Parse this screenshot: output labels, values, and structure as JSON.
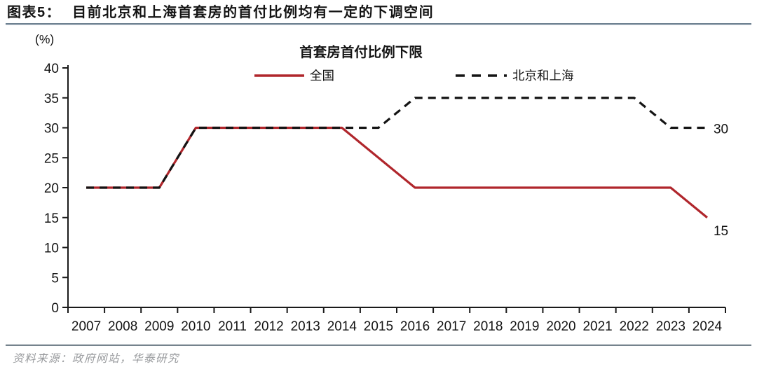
{
  "figure": {
    "label": "图表5：",
    "title": "目前北京和上海首套房的首付比例均有一定的下调空间"
  },
  "source": "资料来源：政府网站，华泰研究",
  "colors": {
    "national_red": "#b0262c",
    "beijing_shanghai_black": "#141414",
    "end_label_gray": "#3f3f3f",
    "header_rule": "#6e8191",
    "axis": "#1a1a1a",
    "source_gray": "#97999c"
  },
  "chart_data": {
    "type": "line",
    "title": "首套房首付比例下限",
    "unit_label": "(%)",
    "x": [
      2007,
      2008,
      2009,
      2010,
      2011,
      2012,
      2013,
      2014,
      2015,
      2016,
      2017,
      2018,
      2019,
      2020,
      2021,
      2022,
      2023,
      2024
    ],
    "series": [
      {
        "name": "全国",
        "style": "solid",
        "color": "#b0262c",
        "values": [
          20,
          20,
          20,
          30,
          30,
          30,
          30,
          30,
          25,
          20,
          20,
          20,
          20,
          20,
          20,
          20,
          20,
          15
        ],
        "end_label": "15",
        "end_label_color": "#b0262c"
      },
      {
        "name": "北京和上海",
        "style": "dashed",
        "color": "#141414",
        "values": [
          20,
          20,
          20,
          30,
          30,
          30,
          30,
          30,
          30,
          35,
          35,
          35,
          35,
          35,
          35,
          35,
          30,
          30
        ],
        "end_label": "30",
        "end_label_color": "#3f3f3f"
      }
    ],
    "ylim": [
      0,
      40
    ],
    "yticks": [
      0,
      5,
      10,
      15,
      20,
      25,
      30,
      35,
      40
    ],
    "grid": false,
    "legend_position": "top"
  }
}
